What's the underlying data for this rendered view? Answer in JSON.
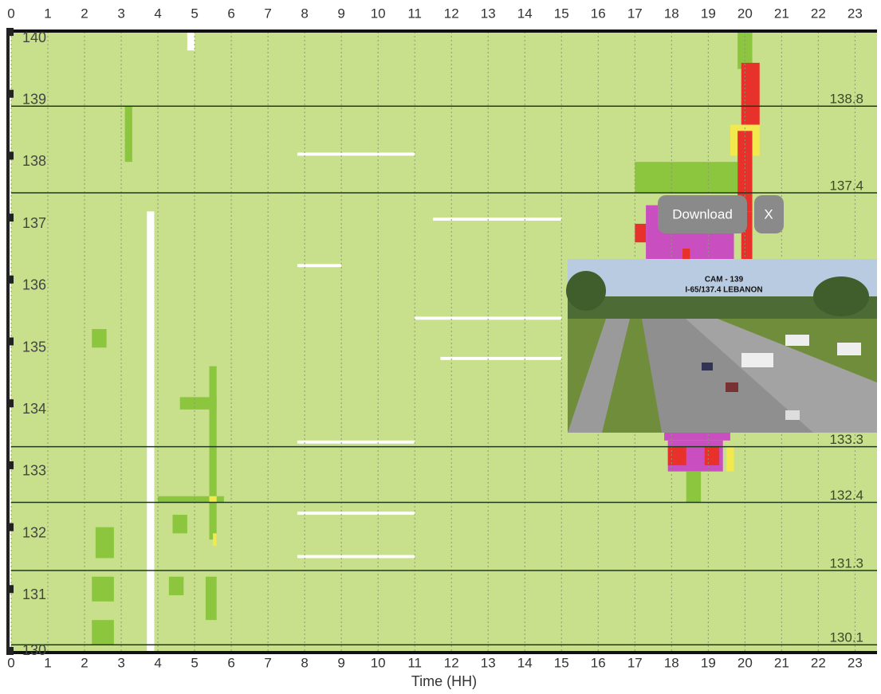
{
  "chart_data": {
    "type": "heatmap",
    "x_label": "Time (HH)",
    "xlim": [
      0,
      23.6
    ],
    "xticks": [
      0,
      1,
      2,
      3,
      4,
      5,
      6,
      7,
      8,
      9,
      10,
      11,
      12,
      13,
      14,
      15,
      16,
      17,
      18,
      19,
      20,
      21,
      22,
      23
    ],
    "ylim": [
      130,
      140
    ],
    "yticks": [
      140,
      139,
      138,
      137,
      136,
      135,
      134,
      133,
      132,
      131,
      130
    ],
    "background_color": "#c8e08c",
    "grid": true,
    "reference_lines": [
      138.8,
      137.4,
      133.3,
      132.4,
      131.3,
      130.1
    ],
    "patches": [
      {
        "x": [
          19.8,
          20.2
        ],
        "y": [
          139.4,
          140
        ],
        "color": "#8cc63f"
      },
      {
        "x": [
          19.9,
          20.4
        ],
        "y": [
          138.5,
          139.5
        ],
        "color": "#e8312a"
      },
      {
        "x": [
          19.6,
          20.4
        ],
        "y": [
          138.0,
          138.5
        ],
        "color": "#f2e94e"
      },
      {
        "x": [
          17.0,
          19.8
        ],
        "y": [
          137.4,
          137.9
        ],
        "color": "#8cc63f"
      },
      {
        "x": [
          19.8,
          20.2
        ],
        "y": [
          137.1,
          138.4
        ],
        "color": "#e8312a"
      },
      {
        "x": [
          17.3,
          19.7
        ],
        "y": [
          136.3,
          137.2
        ],
        "color": "#c94fc0"
      },
      {
        "x": [
          17.0,
          17.3
        ],
        "y": [
          136.6,
          136.9
        ],
        "color": "#e8312a"
      },
      {
        "x": [
          19.9,
          20.2
        ],
        "y": [
          136.3,
          137.1
        ],
        "color": "#e8312a"
      },
      {
        "x": [
          18.3,
          18.5
        ],
        "y": [
          136.2,
          136.5
        ],
        "color": "#e8312a"
      },
      {
        "x": [
          17.8,
          19.6
        ],
        "y": [
          133.4,
          133.6
        ],
        "color": "#c94fc0"
      },
      {
        "x": [
          17.9,
          19.4
        ],
        "y": [
          132.9,
          133.4
        ],
        "color": "#c94fc0"
      },
      {
        "x": [
          17.9,
          18.4
        ],
        "y": [
          133.0,
          133.3
        ],
        "color": "#e8312a"
      },
      {
        "x": [
          18.9,
          19.3
        ],
        "y": [
          133.0,
          133.3
        ],
        "color": "#e8312a"
      },
      {
        "x": [
          18.4,
          18.8
        ],
        "y": [
          132.4,
          132.9
        ],
        "color": "#8cc63f"
      },
      {
        "x": [
          19.5,
          19.7
        ],
        "y": [
          132.9,
          133.3
        ],
        "color": "#f2e94e"
      },
      {
        "x": [
          2.2,
          2.6
        ],
        "y": [
          134.9,
          135.2
        ],
        "color": "#8cc63f"
      },
      {
        "x": [
          2.2,
          2.8
        ],
        "y": [
          130.8,
          131.2
        ],
        "color": "#8cc63f"
      },
      {
        "x": [
          2.3,
          2.8
        ],
        "y": [
          131.5,
          132.0
        ],
        "color": "#8cc63f"
      },
      {
        "x": [
          5.4,
          5.6
        ],
        "y": [
          131.8,
          134.6
        ],
        "color": "#8cc63f"
      },
      {
        "x": [
          4.6,
          5.6
        ],
        "y": [
          133.9,
          134.1
        ],
        "color": "#8cc63f"
      },
      {
        "x": [
          3.1,
          3.3
        ],
        "y": [
          137.9,
          138.8
        ],
        "color": "#8cc63f"
      },
      {
        "x": [
          2.2,
          2.8
        ],
        "y": [
          130.1,
          130.5
        ],
        "color": "#8cc63f"
      },
      {
        "x": [
          4.0,
          5.8
        ],
        "y": [
          132.4,
          132.5
        ],
        "color": "#8cc63f"
      },
      {
        "x": [
          5.4,
          5.6
        ],
        "y": [
          132.4,
          132.5
        ],
        "color": "#f2e94e"
      },
      {
        "x": [
          5.5,
          5.6
        ],
        "y": [
          131.7,
          131.9
        ],
        "color": "#f2e94e"
      },
      {
        "x": [
          4.4,
          4.8
        ],
        "y": [
          131.9,
          132.2
        ],
        "color": "#8cc63f"
      },
      {
        "x": [
          4.3,
          4.7
        ],
        "y": [
          130.9,
          131.2
        ],
        "color": "#8cc63f"
      },
      {
        "x": [
          5.3,
          5.6
        ],
        "y": [
          130.5,
          131.2
        ],
        "color": "#8cc63f"
      },
      {
        "x": [
          3.7,
          3.9
        ],
        "y": [
          130.0,
          137.1
        ],
        "color": "#ffffff"
      },
      {
        "x": [
          4.8,
          5.0
        ],
        "y": [
          139.7,
          140
        ],
        "color": "#ffffff"
      },
      {
        "x": [
          7.8,
          11.0
        ],
        "y": [
          138.0,
          138.05
        ],
        "color": "#ffffff"
      },
      {
        "x": [
          7.8,
          9.0
        ],
        "y": [
          136.2,
          136.25
        ],
        "color": "#ffffff"
      },
      {
        "x": [
          11.0,
          15.0
        ],
        "y": [
          135.35,
          135.4
        ],
        "color": "#ffffff"
      },
      {
        "x": [
          11.5,
          15.0
        ],
        "y": [
          136.95,
          137.0
        ],
        "color": "#ffffff"
      },
      {
        "x": [
          11.7,
          15.0
        ],
        "y": [
          134.7,
          134.75
        ],
        "color": "#ffffff"
      },
      {
        "x": [
          7.8,
          11.0
        ],
        "y": [
          133.35,
          133.4
        ],
        "color": "#ffffff"
      },
      {
        "x": [
          7.8,
          11.0
        ],
        "y": [
          132.2,
          132.25
        ],
        "color": "#ffffff"
      },
      {
        "x": [
          7.8,
          11.0
        ],
        "y": [
          131.5,
          131.55
        ],
        "color": "#ffffff"
      }
    ]
  },
  "popup": {
    "download": "Download",
    "close": "X",
    "camera": "CAM - 139",
    "location": "I-65/137.4 LEBANON"
  }
}
